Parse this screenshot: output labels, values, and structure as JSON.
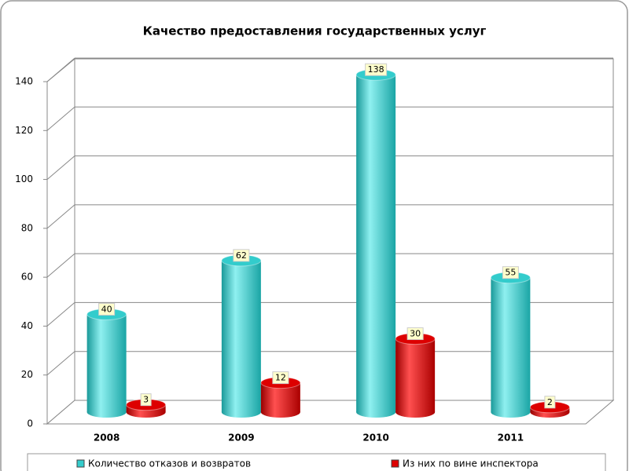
{
  "chart_data": {
    "type": "bar",
    "title": "Качество предоставления государственных услуг",
    "categories": [
      "2008",
      "2009",
      "2010",
      "2011"
    ],
    "series": [
      {
        "name": "Количество отказов и возвратов",
        "color": "#33cccc",
        "values": [
          40,
          62,
          138,
          55
        ]
      },
      {
        "name": "Из них по вине инспектора",
        "color": "#dd0000",
        "values": [
          3,
          12,
          30,
          2
        ]
      }
    ],
    "ylim": [
      0,
      140
    ],
    "yticks": [
      0,
      20,
      40,
      60,
      80,
      100,
      120,
      140
    ],
    "grid": true,
    "legend": "bottom"
  }
}
